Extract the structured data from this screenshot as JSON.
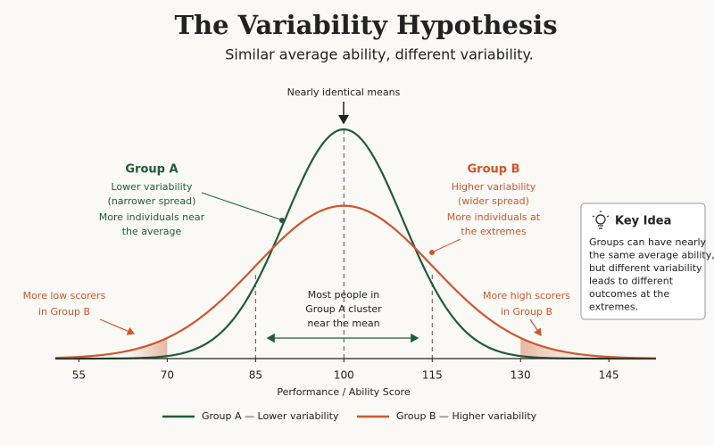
{
  "chart_data": {
    "type": "normal_curves",
    "title": "The Variability Hypothesis",
    "subtitle": "Similar average ability, different variability.",
    "x_label": "Performance / Ability Score",
    "xlim": [
      51,
      153
    ],
    "xticks": [
      55,
      70,
      85,
      100,
      115,
      130,
      145
    ],
    "series": [
      {
        "name": "Group A — Lower variability",
        "color": "#1f5c3b",
        "mean": 100,
        "sd": 10
      },
      {
        "name": "Group B — Higher variability",
        "color": "#d0562b",
        "mean": 100,
        "sd": 15,
        "shade_below": 70,
        "shade_above": 130
      }
    ],
    "reference_lines": [
      85,
      100,
      115
    ],
    "annotations": {
      "means": "Nearly identical means",
      "group_a": {
        "title": "Group A",
        "lines": [
          "Lower variability",
          "(narrower spread)",
          "More individuals near",
          "the average"
        ]
      },
      "group_b": {
        "title": "Group B",
        "lines": [
          "Higher variability",
          "(wider spread)",
          "More individuals at",
          "the extremes"
        ]
      },
      "low": [
        "More low scorers",
        "in Group B"
      ],
      "high": [
        "More high scorers",
        "in Group B"
      ],
      "center": [
        "Most people in",
        "Group A cluster",
        "near the mean"
      ]
    },
    "key_idea": {
      "title": "Key Idea",
      "lines": [
        "Groups can have nearly",
        "the same average ability,",
        "but different variability",
        "leads to different",
        "outcomes at the",
        "extremes."
      ]
    }
  }
}
